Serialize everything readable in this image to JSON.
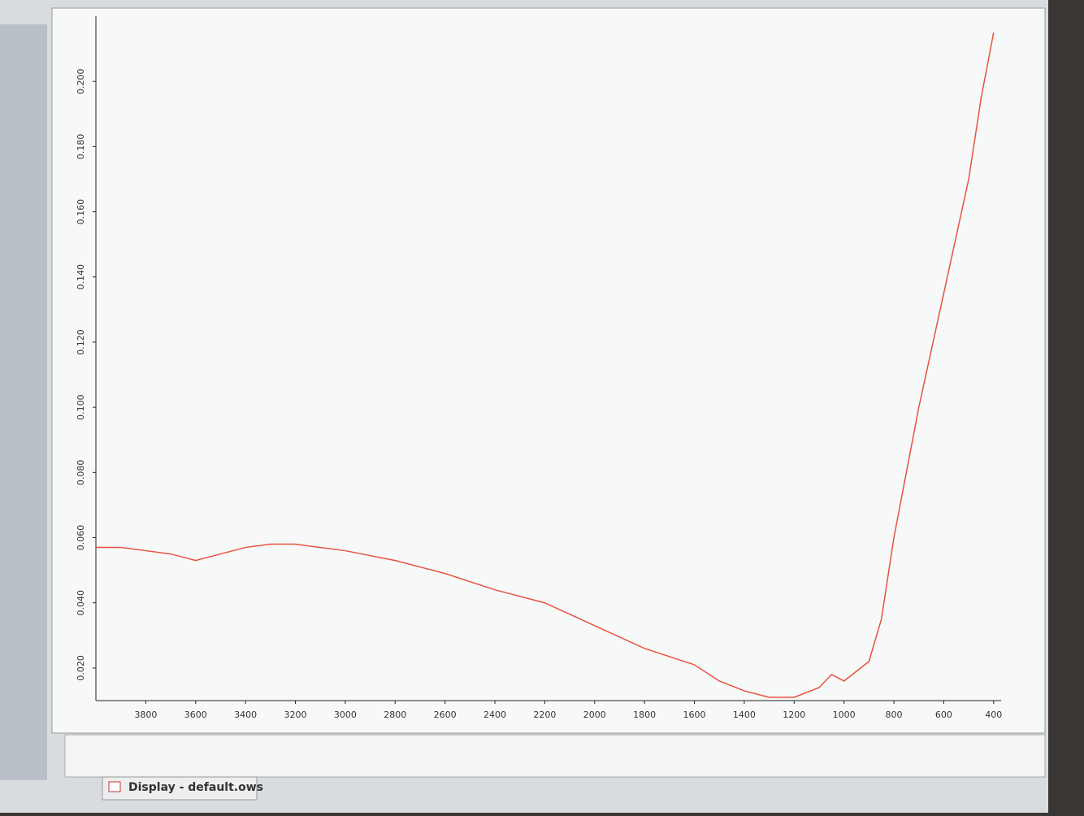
{
  "chart_data": {
    "type": "line",
    "tab_label": "Display - default.ows",
    "x": [
      4000,
      3900,
      3800,
      3700,
      3600,
      3500,
      3400,
      3300,
      3200,
      3000,
      2800,
      2600,
      2400,
      2200,
      2000,
      1800,
      1600,
      1500,
      1400,
      1300,
      1200,
      1100,
      1050,
      1000,
      900,
      850,
      800,
      700,
      600,
      500,
      450,
      400
    ],
    "series": [
      {
        "color": "#e8533f",
        "values": [
          0.057,
          0.057,
          0.056,
          0.055,
          0.053,
          0.055,
          0.057,
          0.058,
          0.058,
          0.056,
          0.053,
          0.049,
          0.044,
          0.04,
          0.033,
          0.026,
          0.021,
          0.016,
          0.013,
          0.011,
          0.011,
          0.014,
          0.018,
          0.016,
          0.022,
          0.035,
          0.06,
          0.1,
          0.135,
          0.17,
          0.195,
          0.215
        ]
      }
    ],
    "xlim": [
      4000,
      370
    ],
    "ylim": [
      0.01,
      0.22
    ],
    "xticks": [
      3800,
      3600,
      3400,
      3200,
      3000,
      2800,
      2600,
      2400,
      2200,
      2000,
      1800,
      1600,
      1400,
      1200,
      1000,
      800,
      600,
      400
    ],
    "yticks": [
      {
        "value": 0.02,
        "label": "0.020"
      },
      {
        "value": 0.04,
        "label": "0.040"
      },
      {
        "value": 0.06,
        "label": "0.060"
      },
      {
        "value": 0.08,
        "label": "0.080"
      },
      {
        "value": 0.1,
        "label": "0.100"
      },
      {
        "value": 0.12,
        "label": "0.120"
      },
      {
        "value": 0.14,
        "label": "0.140"
      },
      {
        "value": 0.16,
        "label": "0.160"
      },
      {
        "value": 0.18,
        "label": "0.180"
      },
      {
        "value": 0.2,
        "label": "0.200"
      }
    ]
  }
}
